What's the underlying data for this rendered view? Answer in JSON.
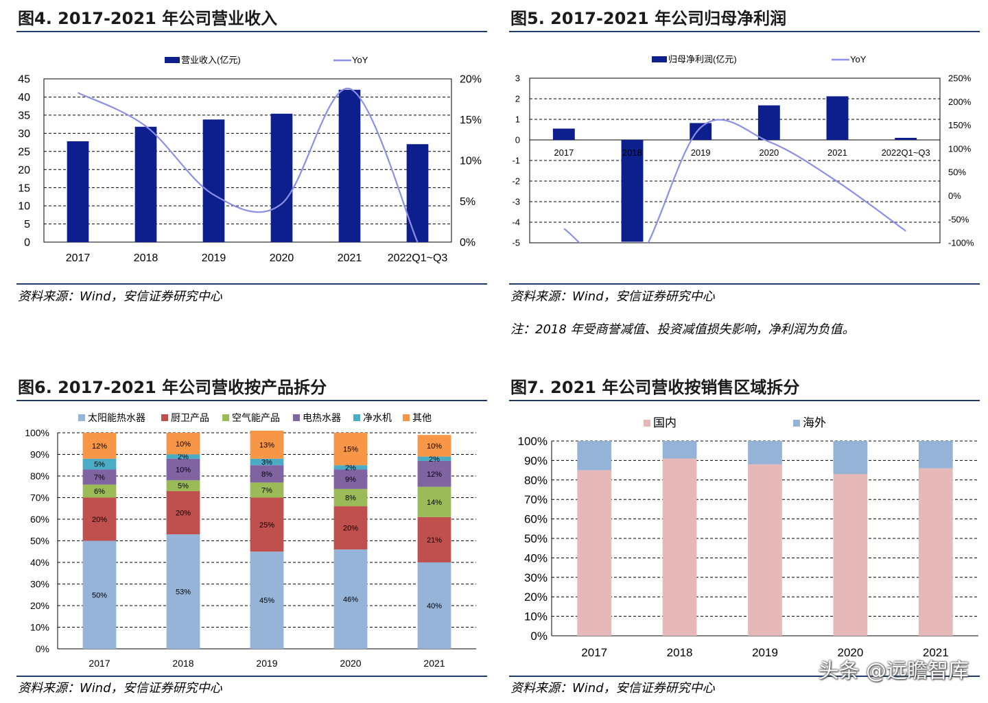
{
  "fig4": {
    "title": "图4. 2017-2021 年公司营业收入",
    "source": "资料来源：Wind，安信证券研究中心"
  },
  "fig5": {
    "title": "图5. 2017-2021 年公司归母净利润",
    "source": "资料来源：Wind，安信证券研究中心",
    "note": "注：2018 年受商誉减值、投资减值损失影响，净利润为负值。"
  },
  "fig6": {
    "title": "图6. 2017-2021 年公司营收按产品拆分",
    "source": "资料来源：Wind，安信证券研究中心"
  },
  "fig7": {
    "title": "图7. 2021 年公司营收按销售区域拆分",
    "source": "资料来源：Wind，安信证券研究中心"
  },
  "watermark": "头条 @远瞻智库",
  "chart_data": [
    {
      "id": "fig4",
      "type": "bar",
      "categories": [
        "2017",
        "2018",
        "2019",
        "2020",
        "2021",
        "2022Q1~Q3"
      ],
      "series": [
        {
          "name": "营业收入(亿元)",
          "type": "bar",
          "axis": "left",
          "color": "#0d1f8c",
          "values": [
            27.8,
            31.8,
            33.8,
            35.4,
            42.0,
            27.0
          ]
        },
        {
          "name": "YoY",
          "type": "line",
          "axis": "right",
          "color": "#8b8fe8",
          "values": [
            0.183,
            0.142,
            0.058,
            0.047,
            0.188,
            0.0
          ]
        }
      ],
      "yleft": {
        "min": 0,
        "max": 45,
        "ticks": [
          0,
          5,
          10,
          15,
          20,
          25,
          30,
          35,
          40,
          45
        ]
      },
      "yright": {
        "min": 0,
        "max": 0.2,
        "ticks": [
          0,
          0.05,
          0.1,
          0.15,
          0.2
        ],
        "tick_labels": [
          "0%",
          "5%",
          "10%",
          "15%",
          "20%"
        ]
      },
      "legend_position": "top",
      "grid": true
    },
    {
      "id": "fig5",
      "type": "bar",
      "categories": [
        "2017",
        "2018",
        "2019",
        "2020",
        "2021",
        "2022Q1~Q3"
      ],
      "series": [
        {
          "name": "归母净利润(亿元)",
          "type": "bar",
          "axis": "left",
          "color": "#0d1f8c",
          "values": [
            0.55,
            -4.95,
            0.82,
            1.68,
            2.12,
            0.1
          ]
        },
        {
          "name": "YoY",
          "type": "line",
          "axis": "right",
          "color": "#8b8fe8",
          "values": [
            -0.7,
            -1.5,
            1.45,
            1.15,
            0.3,
            -0.75
          ]
        }
      ],
      "yleft": {
        "min": -5,
        "max": 3,
        "ticks": [
          -5,
          -4,
          -3,
          -2,
          -1,
          0,
          1,
          2,
          3
        ]
      },
      "yright": {
        "min": -1.0,
        "max": 2.5,
        "ticks": [
          -1.0,
          -0.5,
          0,
          0.5,
          1.0,
          1.5,
          2.0,
          2.5
        ],
        "tick_labels": [
          "-100%",
          "-50%",
          "0%",
          "50%",
          "100%",
          "150%",
          "200%",
          "250%"
        ]
      },
      "legend_position": "top",
      "grid": true
    },
    {
      "id": "fig6",
      "type": "bar",
      "stacked": true,
      "categories": [
        "2017",
        "2018",
        "2019",
        "2020",
        "2021"
      ],
      "series": [
        {
          "name": "太阳能热水器",
          "color": "#96b3d8",
          "values": [
            50,
            53,
            45,
            46,
            40
          ]
        },
        {
          "name": "厨卫产品",
          "color": "#c0504d",
          "values": [
            20,
            20,
            25,
            20,
            21
          ]
        },
        {
          "name": "空气能产品",
          "color": "#9bbb59",
          "values": [
            6,
            5,
            7,
            8,
            14
          ]
        },
        {
          "name": "电热水器",
          "color": "#8064a2",
          "values": [
            7,
            10,
            8,
            9,
            12
          ]
        },
        {
          "name": "净水机",
          "color": "#4bacc6",
          "values": [
            5,
            2,
            3,
            2,
            2
          ]
        },
        {
          "name": "其他",
          "color": "#f79646",
          "values": [
            12,
            10,
            13,
            15,
            10
          ]
        }
      ],
      "y": {
        "min": 0,
        "max": 100,
        "ticks": [
          0,
          10,
          20,
          30,
          40,
          50,
          60,
          70,
          80,
          90,
          100
        ],
        "tick_labels": [
          "0%",
          "10%",
          "20%",
          "30%",
          "40%",
          "50%",
          "60%",
          "70%",
          "80%",
          "90%",
          "100%"
        ]
      },
      "value_labels_suffix": "%",
      "legend_position": "top",
      "grid": true
    },
    {
      "id": "fig7",
      "type": "bar",
      "stacked": true,
      "categories": [
        "2017",
        "2018",
        "2019",
        "2020",
        "2021"
      ],
      "series": [
        {
          "name": "国内",
          "color": "#e6b9b8",
          "values": [
            85,
            91,
            88,
            83,
            86
          ]
        },
        {
          "name": "海外",
          "color": "#95b3d7",
          "values": [
            15,
            9,
            12,
            17,
            14
          ]
        }
      ],
      "y": {
        "min": 0,
        "max": 100,
        "ticks": [
          0,
          10,
          20,
          30,
          40,
          50,
          60,
          70,
          80,
          90,
          100
        ],
        "tick_labels": [
          "0%",
          "10%",
          "20%",
          "30%",
          "40%",
          "50%",
          "60%",
          "70%",
          "80%",
          "90%",
          "100%"
        ]
      },
      "legend_position": "top",
      "grid": true
    }
  ]
}
